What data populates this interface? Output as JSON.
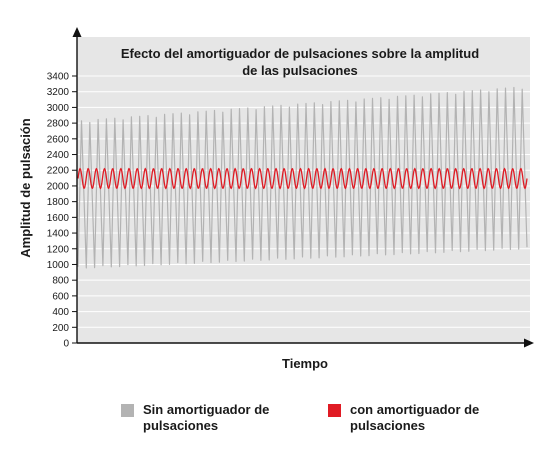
{
  "chart_data": {
    "type": "line",
    "title": "Efecto del amortiguador de pulsaciones sobre la amplitud de las pulsaciones",
    "title_lines": [
      "Efecto del amortiguador de pulsaciones sobre la amplitud",
      "de las pulsaciones"
    ],
    "xlabel": "Tiempo",
    "ylabel": "Amplitud de pulsación",
    "ylim": [
      0,
      3400
    ],
    "yticks": [
      0,
      200,
      400,
      600,
      800,
      1000,
      1200,
      1400,
      1600,
      1800,
      2000,
      2200,
      2400,
      2600,
      2800,
      3000,
      3200,
      3400
    ],
    "grid": true,
    "legend_position": "bottom",
    "series": [
      {
        "name": "Sin amortiguador de pulsaciones",
        "color": "#b3b3b3",
        "cycles": 54,
        "peak_range": [
          2830,
          3270
        ],
        "trough_range": [
          950,
          1200
        ]
      },
      {
        "name": "con amortiguador de pulsaciones",
        "color": "#e01b24",
        "cycles": 55,
        "peak_range": [
          2220,
          2220
        ],
        "trough_range": [
          1970,
          1970
        ]
      }
    ]
  },
  "legend": {
    "items": [
      {
        "label": "Sin amortiguador de\npulsaciones",
        "color": "#b3b3b3"
      },
      {
        "label": "con amortiguador de\npulsaciones",
        "color": "#e01b24"
      }
    ]
  },
  "colors": {
    "plot_background": "#e6e6e6",
    "grid": "#ffffff",
    "axis": "#111111"
  }
}
